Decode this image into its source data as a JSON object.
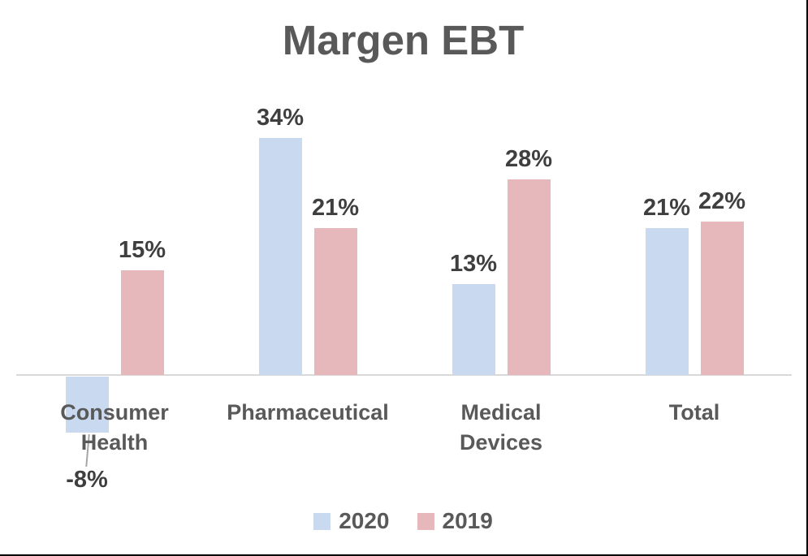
{
  "chart_data": {
    "type": "bar",
    "title": "Margen EBT",
    "categories": [
      "Consumer Health",
      "Pharmaceutical",
      "Medical Devices",
      "Total"
    ],
    "x_tick_label_lines": [
      [
        "Consumer",
        "Health"
      ],
      [
        "Pharmaceutical"
      ],
      [
        "Medical",
        "Devices"
      ],
      [
        "Total"
      ]
    ],
    "series": [
      {
        "name": "2020",
        "color": "#c9d9f0",
        "values": [
          -8,
          34,
          13,
          21
        ],
        "labels": [
          "-8%",
          "34%",
          "13%",
          "21%"
        ]
      },
      {
        "name": "2019",
        "color": "#e6b8bb",
        "values": [
          15,
          21,
          28,
          22
        ],
        "labels": [
          "15%",
          "21%",
          "28%",
          "22%"
        ]
      }
    ],
    "ylim": [
      -10,
      36
    ],
    "grid": false,
    "legend_position": "bottom",
    "xlabel": "",
    "ylabel": "",
    "title_color": "#595959",
    "tick_label_color": "#595959",
    "value_label_color": "#3f3f3f",
    "axis_line_color": "#d9d9d9",
    "leader_line_color": "#a6a6a6"
  }
}
